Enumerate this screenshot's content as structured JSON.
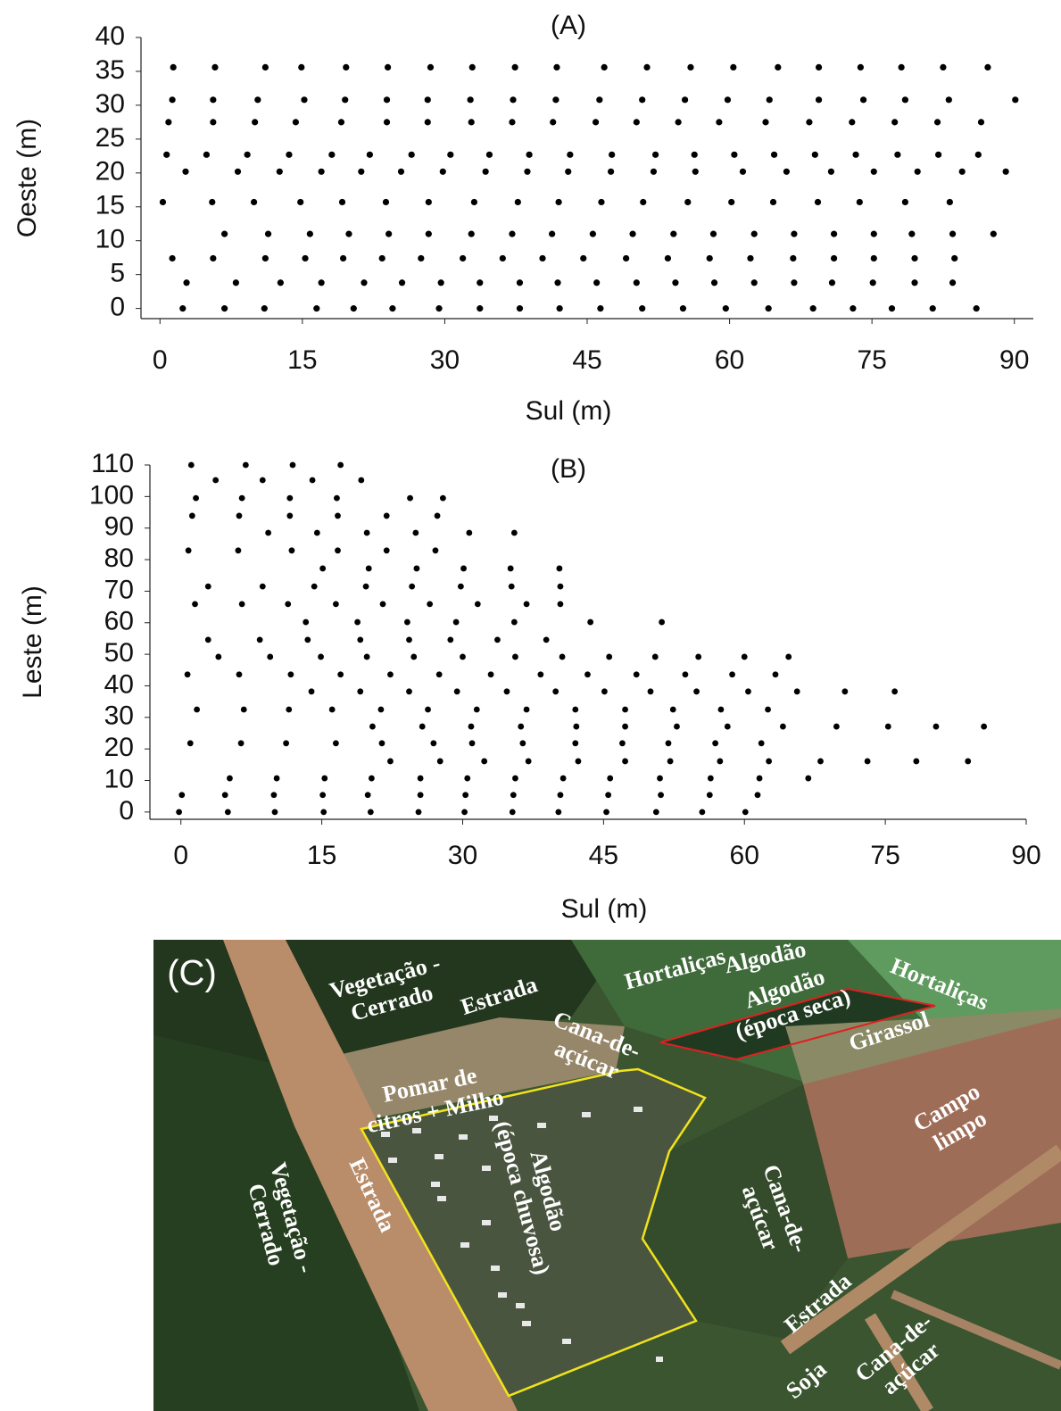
{
  "chart_data": [
    {
      "type": "scatter",
      "title": "(A)",
      "x_label": "Sul (m)",
      "y_label": "Oeste (m)",
      "color": "#000000",
      "xlim": [
        -2,
        92
      ],
      "ylim": [
        -1.5,
        40
      ],
      "xticks": [
        0,
        15,
        30,
        45,
        60,
        75,
        90
      ],
      "yticks": [
        0,
        5,
        10,
        15,
        20,
        25,
        30,
        35,
        40
      ],
      "x": [
        1.4,
        5.8,
        11.1,
        14.9,
        19.6,
        24.0,
        28.5,
        32.9,
        37.4,
        41.8,
        46.8,
        51.3,
        55.9,
        60.4,
        65.1,
        69.4,
        73.8,
        78.1,
        82.5,
        87.2,
        1.3,
        5.6,
        10.3,
        15.2,
        19.5,
        23.9,
        28.2,
        32.7,
        37.2,
        41.7,
        46.3,
        50.8,
        55.3,
        59.8,
        64.2,
        69.4,
        74.1,
        78.5,
        83.1,
        90.1,
        0.9,
        5.6,
        10.0,
        14.3,
        19.1,
        23.9,
        28.2,
        32.8,
        37.1,
        41.4,
        45.9,
        50.2,
        54.6,
        58.9,
        63.8,
        68.4,
        72.9,
        77.4,
        81.9,
        86.5,
        0.7,
        4.9,
        9.2,
        13.6,
        18.1,
        22.1,
        26.5,
        30.6,
        34.7,
        38.9,
        43.2,
        47.6,
        52.2,
        56.3,
        60.5,
        64.7,
        69.0,
        73.3,
        77.7,
        82.0,
        86.2,
        2.7,
        8.2,
        12.6,
        17.0,
        21.2,
        25.4,
        29.8,
        34.3,
        38.7,
        43.0,
        47.5,
        52.0,
        56.4,
        61.4,
        66.0,
        70.7,
        75.2,
        79.8,
        84.5,
        89.1,
        0.3,
        5.5,
        9.9,
        14.8,
        19.2,
        23.8,
        28.3,
        33.1,
        37.7,
        42.0,
        46.5,
        50.9,
        55.6,
        60.2,
        64.6,
        69.3,
        73.7,
        78.5,
        83.2,
        6.8,
        11.4,
        15.8,
        19.9,
        24.1,
        28.3,
        32.8,
        37.1,
        41.3,
        45.6,
        49.8,
        54.1,
        58.3,
        62.6,
        66.8,
        71.0,
        75.2,
        79.2,
        83.5,
        87.8,
        1.3,
        5.6,
        11.1,
        15.3,
        19.3,
        23.4,
        27.5,
        31.9,
        36.1,
        40.3,
        44.6,
        49.1,
        53.5,
        57.9,
        62.2,
        66.7,
        71.0,
        75.2,
        79.5,
        83.7,
        2.8,
        8.0,
        12.7,
        17.0,
        21.5,
        25.5,
        29.6,
        33.7,
        37.9,
        41.9,
        46.0,
        50.2,
        54.3,
        58.4,
        62.6,
        66.8,
        70.8,
        75.1,
        79.5,
        83.5,
        2.4,
        6.8,
        11.0,
        16.5,
        20.4,
        24.5,
        29.4,
        33.7,
        37.9,
        42.1,
        46.4,
        50.8,
        55.1,
        59.6,
        64.1,
        68.8,
        73.0,
        77.1,
        81.4,
        86.0
      ],
      "y": [
        35.6,
        35.6,
        35.6,
        35.6,
        35.6,
        35.6,
        35.6,
        35.6,
        35.6,
        35.6,
        35.6,
        35.6,
        35.6,
        35.6,
        35.6,
        35.6,
        35.6,
        35.6,
        35.6,
        35.6,
        30.8,
        30.8,
        30.8,
        30.8,
        30.8,
        30.8,
        30.8,
        30.8,
        30.8,
        30.8,
        30.8,
        30.8,
        30.8,
        30.8,
        30.8,
        30.8,
        30.8,
        30.8,
        30.8,
        30.8,
        27.5,
        27.5,
        27.5,
        27.5,
        27.5,
        27.5,
        27.5,
        27.5,
        27.5,
        27.5,
        27.5,
        27.5,
        27.5,
        27.5,
        27.5,
        27.5,
        27.5,
        27.5,
        27.5,
        27.5,
        22.7,
        22.7,
        22.7,
        22.7,
        22.7,
        22.7,
        22.7,
        22.7,
        22.7,
        22.7,
        22.7,
        22.7,
        22.7,
        22.7,
        22.7,
        22.7,
        22.7,
        22.7,
        22.7,
        22.7,
        22.7,
        20.2,
        20.2,
        20.2,
        20.2,
        20.2,
        20.2,
        20.2,
        20.2,
        20.2,
        20.2,
        20.2,
        20.2,
        20.2,
        20.2,
        20.2,
        20.2,
        20.2,
        20.2,
        20.2,
        20.2,
        15.7,
        15.7,
        15.7,
        15.7,
        15.7,
        15.7,
        15.7,
        15.7,
        15.7,
        15.7,
        15.7,
        15.7,
        15.7,
        15.7,
        15.7,
        15.7,
        15.7,
        15.7,
        15.7,
        11.0,
        11.0,
        11.0,
        11.0,
        11.0,
        11.0,
        11.0,
        11.0,
        11.0,
        11.0,
        11.0,
        11.0,
        11.0,
        11.0,
        11.0,
        11.0,
        11.0,
        11.0,
        11.0,
        11.0,
        7.4,
        7.4,
        7.4,
        7.4,
        7.4,
        7.4,
        7.4,
        7.4,
        7.4,
        7.4,
        7.4,
        7.4,
        7.4,
        7.4,
        7.4,
        7.4,
        7.4,
        7.4,
        7.4,
        7.4,
        3.8,
        3.8,
        3.8,
        3.8,
        3.8,
        3.8,
        3.8,
        3.8,
        3.8,
        3.8,
        3.8,
        3.8,
        3.8,
        3.8,
        3.8,
        3.8,
        3.8,
        3.8,
        3.8,
        3.8,
        0.0,
        0.0,
        0.0,
        0.0,
        0.0,
        0.0,
        0.0,
        0.0,
        0.0,
        0.0,
        0.0,
        0.0,
        0.0,
        0.0,
        0.0,
        0.0,
        0.0,
        0.0,
        0.0,
        0.0
      ]
    },
    {
      "type": "scatter",
      "title": "(B)",
      "x_label": "Sul (m)",
      "y_label": "Leste (m)",
      "color": "#000000",
      "xlim": [
        -3.3,
        90
      ],
      "ylim": [
        -2.3,
        110
      ],
      "xticks": [
        0,
        15,
        30,
        45,
        60,
        75,
        90
      ],
      "yticks": [
        0,
        10,
        20,
        30,
        40,
        50,
        60,
        70,
        80,
        90,
        100,
        110
      ],
      "x": [
        1.1,
        6.9,
        11.9,
        17.0,
        3.7,
        8.7,
        14.0,
        19.2,
        1.6,
        6.5,
        11.6,
        16.6,
        24.4,
        27.9,
        1.2,
        6.2,
        11.6,
        16.7,
        21.9,
        27.3,
        9.3,
        14.5,
        19.8,
        25.0,
        30.7,
        35.5,
        0.8,
        6.1,
        11.8,
        16.7,
        21.9,
        27.1,
        15.1,
        20.0,
        25.1,
        30.1,
        35.1,
        40.3,
        2.9,
        8.7,
        14.2,
        19.7,
        24.6,
        29.8,
        35.2,
        40.4,
        1.5,
        6.5,
        11.4,
        16.5,
        21.5,
        26.5,
        31.6,
        36.8,
        40.4,
        13.3,
        18.8,
        24.1,
        29.3,
        35.5,
        43.6,
        51.2,
        2.9,
        8.4,
        13.5,
        19.1,
        24.3,
        28.7,
        33.7,
        38.9,
        4.0,
        9.5,
        14.9,
        19.8,
        24.8,
        30.0,
        35.6,
        40.6,
        45.6,
        50.5,
        55.1,
        60.0,
        64.7,
        0.7,
        6.2,
        11.7,
        17.0,
        22.3,
        27.5,
        33.0,
        38.3,
        43.3,
        48.5,
        53.7,
        58.7,
        63.3,
        13.9,
        19.1,
        24.3,
        29.4,
        34.7,
        39.9,
        45.1,
        50.0,
        54.9,
        60.4,
        65.6,
        70.7,
        76.0,
        1.7,
        6.7,
        11.5,
        16.1,
        21.3,
        26.3,
        31.5,
        36.8,
        42.0,
        47.3,
        52.4,
        57.5,
        62.5,
        20.4,
        25.7,
        30.9,
        36.2,
        42.1,
        47.3,
        52.8,
        58.2,
        64.1,
        69.8,
        75.3,
        80.4,
        85.5,
        1.0,
        6.4,
        11.2,
        16.5,
        21.4,
        26.9,
        31.0,
        36.4,
        42.0,
        47.0,
        51.9,
        56.9,
        61.8,
        22.3,
        27.6,
        32.3,
        37.0,
        42.3,
        47.3,
        52.1,
        57.4,
        62.6,
        68.1,
        73.1,
        78.3,
        83.8,
        5.2,
        10.2,
        15.3,
        20.3,
        25.5,
        30.5,
        35.6,
        40.7,
        45.7,
        51.0,
        56.4,
        61.6,
        66.8,
        0.1,
        4.7,
        9.9,
        15.1,
        19.9,
        25.5,
        30.3,
        35.4,
        40.4,
        45.5,
        51.1,
        56.3,
        61.4,
        -0.2,
        5.0,
        10.0,
        15.2,
        20.2,
        25.3,
        30.2,
        35.3,
        40.2,
        45.3,
        50.6,
        55.5,
        60.1
      ],
      "y": [
        110,
        110,
        110,
        110,
        105.2,
        105.2,
        105.2,
        105.2,
        99.5,
        99.5,
        99.5,
        99.5,
        99.5,
        99.5,
        93.9,
        93.9,
        93.9,
        93.9,
        93.9,
        93.9,
        88.5,
        88.5,
        88.5,
        88.5,
        88.5,
        88.5,
        82.9,
        82.9,
        82.9,
        82.9,
        82.9,
        82.9,
        77.2,
        77.2,
        77.2,
        77.2,
        77.2,
        77.2,
        71.5,
        71.5,
        71.5,
        71.5,
        71.5,
        71.5,
        71.5,
        71.5,
        65.9,
        65.9,
        65.9,
        65.9,
        65.9,
        65.9,
        65.9,
        65.9,
        65.9,
        60.2,
        60.2,
        60.2,
        60.2,
        60.2,
        60.2,
        60.2,
        54.6,
        54.6,
        54.6,
        54.6,
        54.6,
        54.6,
        54.6,
        54.6,
        49.2,
        49.2,
        49.2,
        49.2,
        49.2,
        49.2,
        49.2,
        49.2,
        49.2,
        49.2,
        49.2,
        49.2,
        49.2,
        43.6,
        43.6,
        43.6,
        43.6,
        43.6,
        43.6,
        43.6,
        43.6,
        43.6,
        43.6,
        43.6,
        43.6,
        43.6,
        38.2,
        38.2,
        38.2,
        38.2,
        38.2,
        38.2,
        38.2,
        38.2,
        38.2,
        38.2,
        38.2,
        38.2,
        38.2,
        32.5,
        32.5,
        32.5,
        32.5,
        32.5,
        32.5,
        32.5,
        32.5,
        32.5,
        32.5,
        32.5,
        32.5,
        32.5,
        27.1,
        27.1,
        27.1,
        27.1,
        27.1,
        27.1,
        27.1,
        27.1,
        27.1,
        27.1,
        27.1,
        27.1,
        27.1,
        21.8,
        21.8,
        21.8,
        21.8,
        21.8,
        21.8,
        21.8,
        21.8,
        21.8,
        21.8,
        21.8,
        21.8,
        21.8,
        16.1,
        16.1,
        16.1,
        16.1,
        16.1,
        16.1,
        16.1,
        16.1,
        16.1,
        16.1,
        16.1,
        16.1,
        16.1,
        10.7,
        10.7,
        10.7,
        10.7,
        10.7,
        10.7,
        10.7,
        10.7,
        10.7,
        10.7,
        10.7,
        10.7,
        10.7,
        5.4,
        5.4,
        5.4,
        5.4,
        5.4,
        5.4,
        5.4,
        5.4,
        5.4,
        5.4,
        5.4,
        5.4,
        5.4,
        0.0,
        0.0,
        0.0,
        0.0,
        0.0,
        0.0,
        0.0,
        0.0,
        0.0,
        0.0,
        0.0,
        0.0,
        0.0
      ]
    }
  ],
  "photo": {
    "panel_label": "(C)",
    "labels": [
      [
        "Vegetação -",
        "Cerrado"
      ],
      [
        "Estrada"
      ],
      [
        "Hortaliças"
      ],
      [
        "Cana-de-",
        "açúcar"
      ],
      [
        "Algodão"
      ],
      [
        "Algodão",
        "(época seca)"
      ],
      [
        "Hortaliças"
      ],
      [
        "Girassol"
      ],
      [
        "Pomar de",
        "citros + Milho"
      ],
      [
        "Campo",
        "limpo"
      ],
      [
        "Vegetação -",
        "Cerrado"
      ],
      [
        "Estrada"
      ],
      [
        "Algodão",
        "(época chuvosa)"
      ],
      [
        "Cana-de-",
        "açúcar"
      ],
      [
        "Estrada"
      ],
      [
        "Soja"
      ],
      [
        "Cana-de-",
        "açúcar"
      ]
    ]
  }
}
